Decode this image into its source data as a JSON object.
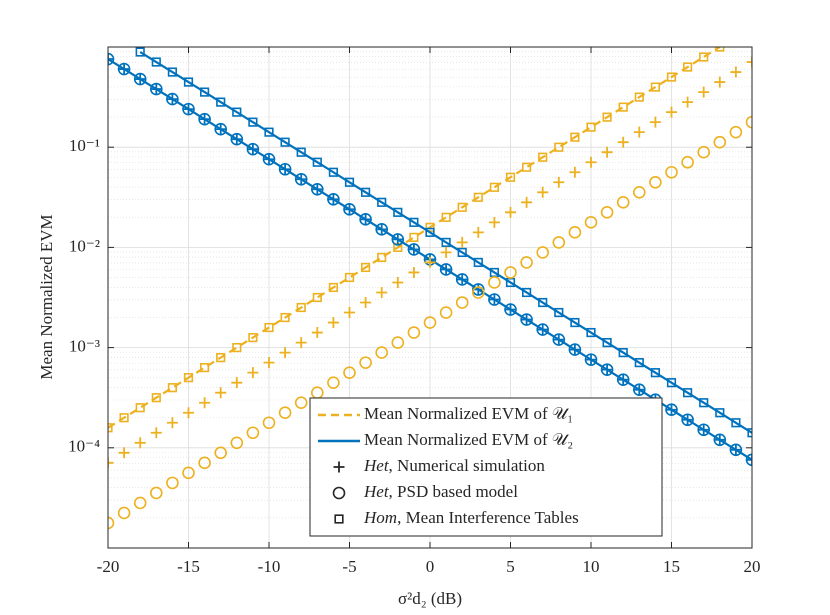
{
  "chart_data": {
    "type": "line",
    "y_label": "Mean Normalized EVM",
    "x_label": "σ²d₂ (dB)",
    "log_y": true,
    "grid": true,
    "minor_grid": true,
    "legend_position": "lower right",
    "x": [
      -20,
      -19,
      -18,
      -17,
      -16,
      -15,
      -14,
      -13,
      -12,
      -11,
      -10,
      -9,
      -8,
      -7,
      -6,
      -5,
      -4,
      -3,
      -2,
      -1,
      0,
      1,
      2,
      3,
      4,
      5,
      6,
      7,
      8,
      9,
      10,
      11,
      12,
      13,
      14,
      15,
      16,
      17,
      18,
      19,
      20
    ],
    "xlim": [
      -20,
      20
    ],
    "xticks": [
      -20,
      -15,
      -10,
      -5,
      0,
      5,
      10,
      15,
      20
    ],
    "ylim": [
      1e-05,
      1
    ],
    "yticks": [
      {
        "value": 0.1,
        "label": "10⁻¹"
      },
      {
        "value": 0.01,
        "label": "10⁻²"
      },
      {
        "value": 0.001,
        "label": "10⁻³"
      },
      {
        "value": 0.0001,
        "label": "10⁻⁴"
      }
    ],
    "series": [
      {
        "name": "Mean Normalized EVM of 𝒰₁",
        "color": "#EDB120",
        "line": "dashed",
        "markers": [
          "square"
        ],
        "values": [
          0.0001585,
          0.0001995,
          0.0002512,
          0.0003162,
          0.0003981,
          0.0005012,
          0.000631,
          0.0007943,
          0.001,
          0.001259,
          0.001585,
          0.001995,
          0.002512,
          0.003162,
          0.003981,
          0.005012,
          0.00631,
          0.007943,
          0.01,
          0.01259,
          0.01585,
          0.01995,
          0.02512,
          0.03162,
          0.03981,
          0.05012,
          0.0631,
          0.07943,
          0.1,
          0.1259,
          0.1585,
          0.1995,
          0.2512,
          0.3162,
          0.3981,
          0.5012,
          0.631,
          0.7943,
          1,
          null,
          null
        ]
      },
      {
        "name": "Mean Normalized EVM of 𝒰₂",
        "color": "#0072BD",
        "line": "solid",
        "markers": [
          "circle",
          "plus"
        ],
        "values": [
          0.7586,
          0.6026,
          0.4786,
          0.3802,
          0.302,
          0.2399,
          0.1905,
          0.1514,
          0.1202,
          0.0955,
          0.07586,
          0.06026,
          0.04786,
          0.03802,
          0.0302,
          0.02399,
          0.01905,
          0.01514,
          0.01202,
          0.00955,
          0.007586,
          0.006026,
          0.004786,
          0.003802,
          0.00302,
          0.002399,
          0.001905,
          0.001514,
          0.001202,
          0.000955,
          0.0007586,
          0.0006026,
          0.0004786,
          0.0003802,
          0.000302,
          0.0002399,
          0.0001905,
          0.0001514,
          0.0001202,
          9.55e-05,
          7.586e-05
        ]
      },
      {
        "color": "#0072BD",
        "line": "solid",
        "markers": [
          "square"
        ],
        "values": [
          null,
          null,
          0.8913,
          0.7079,
          0.5623,
          0.4467,
          0.3548,
          0.2818,
          0.2239,
          0.1778,
          0.1413,
          0.1122,
          0.08913,
          0.07079,
          0.05623,
          0.04467,
          0.03548,
          0.02818,
          0.02239,
          0.01778,
          0.01413,
          0.01122,
          0.008913,
          0.007079,
          0.005623,
          0.004467,
          0.003548,
          0.002818,
          0.002239,
          0.001778,
          0.001413,
          0.001122,
          0.0008913,
          0.0007079,
          0.0005623,
          0.0004467,
          0.0003548,
          0.0002818,
          0.0002239,
          0.0001778,
          0.0001413
        ]
      },
      {
        "color": "#EDB120",
        "markers": [
          "plus"
        ],
        "values": [
          7.079e-05,
          8.913e-05,
          0.0001122,
          0.0001413,
          0.0001778,
          0.0002239,
          0.0002818,
          0.0003548,
          0.0004467,
          0.0005623,
          0.0007079,
          0.0008913,
          0.001122,
          0.001413,
          0.001778,
          0.002239,
          0.002818,
          0.003548,
          0.004467,
          0.005623,
          0.007079,
          0.008913,
          0.01122,
          0.01413,
          0.01778,
          0.02239,
          0.02818,
          0.03548,
          0.04467,
          0.05623,
          0.07079,
          0.08913,
          0.1122,
          0.1413,
          0.1778,
          0.2239,
          0.2818,
          0.3548,
          0.4467,
          0.5623,
          0.7079
        ]
      },
      {
        "color": "#EDB120",
        "markers": [
          "circle"
        ],
        "values": [
          1.778e-05,
          2.239e-05,
          2.818e-05,
          3.548e-05,
          4.467e-05,
          5.623e-05,
          7.079e-05,
          8.913e-05,
          0.0001122,
          0.0001413,
          0.0001778,
          0.0002239,
          0.0002818,
          0.0003548,
          0.0004467,
          0.0005623,
          0.0007079,
          0.0008913,
          0.001122,
          0.001413,
          0.001778,
          0.002239,
          0.002818,
          0.003548,
          0.004467,
          0.005623,
          0.007079,
          0.008913,
          0.01122,
          0.01413,
          0.01778,
          0.02239,
          0.02818,
          0.03548,
          0.04467,
          0.05623,
          0.07079,
          0.08913,
          0.1122,
          0.1413,
          0.1778
        ]
      }
    ],
    "marker_legend": [
      {
        "emphasis": "Het",
        "text": ", Numerical simulation",
        "marker": "plus"
      },
      {
        "emphasis": "Het",
        "text": ", PSD based model",
        "marker": "circle"
      },
      {
        "emphasis": "Hom",
        "text": ", Mean Interference Tables",
        "marker": "square"
      }
    ]
  }
}
